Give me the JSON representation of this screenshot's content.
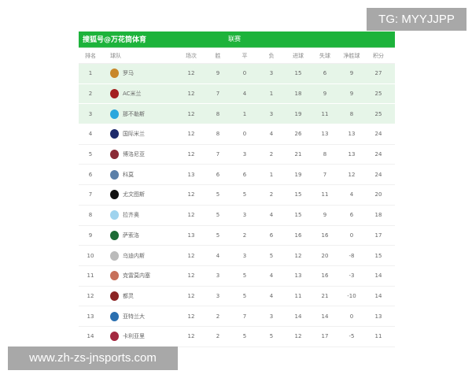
{
  "header": {
    "source": "搜狐号@万花筒体育",
    "league": "联赛"
  },
  "columns": [
    "排名",
    "球队",
    "场次",
    "胜",
    "平",
    "负",
    "进球",
    "失球",
    "净胜球",
    "积分"
  ],
  "rows": [
    {
      "rank": "1",
      "team": "罗马",
      "logo_color": "#c8872a",
      "p": "12",
      "w": "9",
      "d": "0",
      "l": "3",
      "gf": "15",
      "ga": "6",
      "gd": "9",
      "pts": "27",
      "highlight": true
    },
    {
      "rank": "2",
      "team": "AC米兰",
      "logo_color": "#a32020",
      "p": "12",
      "w": "7",
      "d": "4",
      "l": "1",
      "gf": "18",
      "ga": "9",
      "gd": "9",
      "pts": "25",
      "highlight": true
    },
    {
      "rank": "3",
      "team": "那不勒斯",
      "logo_color": "#2aa7dd",
      "p": "12",
      "w": "8",
      "d": "1",
      "l": "3",
      "gf": "19",
      "ga": "11",
      "gd": "8",
      "pts": "25",
      "highlight": true
    },
    {
      "rank": "4",
      "team": "国际米兰",
      "logo_color": "#1d2a6b",
      "p": "12",
      "w": "8",
      "d": "0",
      "l": "4",
      "gf": "26",
      "ga": "13",
      "gd": "13",
      "pts": "24"
    },
    {
      "rank": "5",
      "team": "博洛尼亚",
      "logo_color": "#8a2a35",
      "p": "12",
      "w": "7",
      "d": "3",
      "l": "2",
      "gf": "21",
      "ga": "8",
      "gd": "13",
      "pts": "24"
    },
    {
      "rank": "6",
      "team": "科莫",
      "logo_color": "#5a7fa8",
      "p": "13",
      "w": "6",
      "d": "6",
      "l": "1",
      "gf": "19",
      "ga": "7",
      "gd": "12",
      "pts": "24"
    },
    {
      "rank": "7",
      "team": "尤文图斯",
      "logo_color": "#111111",
      "p": "12",
      "w": "5",
      "d": "5",
      "l": "2",
      "gf": "15",
      "ga": "11",
      "gd": "4",
      "pts": "20"
    },
    {
      "rank": "8",
      "team": "拉齐奥",
      "logo_color": "#9fd3ee",
      "p": "12",
      "w": "5",
      "d": "3",
      "l": "4",
      "gf": "15",
      "ga": "9",
      "gd": "6",
      "pts": "18"
    },
    {
      "rank": "9",
      "team": "萨索洛",
      "logo_color": "#1d6b35",
      "p": "13",
      "w": "5",
      "d": "2",
      "l": "6",
      "gf": "16",
      "ga": "16",
      "gd": "0",
      "pts": "17"
    },
    {
      "rank": "10",
      "team": "乌迪内斯",
      "logo_color": "#bbbbbb",
      "p": "12",
      "w": "4",
      "d": "3",
      "l": "5",
      "gf": "12",
      "ga": "20",
      "gd": "-8",
      "pts": "15"
    },
    {
      "rank": "11",
      "team": "克雷莫内塞",
      "logo_color": "#c7705a",
      "p": "12",
      "w": "3",
      "d": "5",
      "l": "4",
      "gf": "13",
      "ga": "16",
      "gd": "-3",
      "pts": "14"
    },
    {
      "rank": "12",
      "team": "都灵",
      "logo_color": "#8b2323",
      "p": "12",
      "w": "3",
      "d": "5",
      "l": "4",
      "gf": "11",
      "ga": "21",
      "gd": "-10",
      "pts": "14"
    },
    {
      "rank": "13",
      "team": "亚特兰大",
      "logo_color": "#2a6fb0",
      "p": "12",
      "w": "2",
      "d": "7",
      "l": "3",
      "gf": "14",
      "ga": "14",
      "gd": "0",
      "pts": "13"
    },
    {
      "rank": "14",
      "team": "卡利亚里",
      "logo_color": "#a3283f",
      "p": "12",
      "w": "2",
      "d": "5",
      "l": "5",
      "gf": "12",
      "ga": "17",
      "gd": "-5",
      "pts": "11"
    }
  ],
  "watermarks": {
    "top": "TG: MYYJJPP",
    "bottom": "www.zh-zs-jnsports.com"
  }
}
